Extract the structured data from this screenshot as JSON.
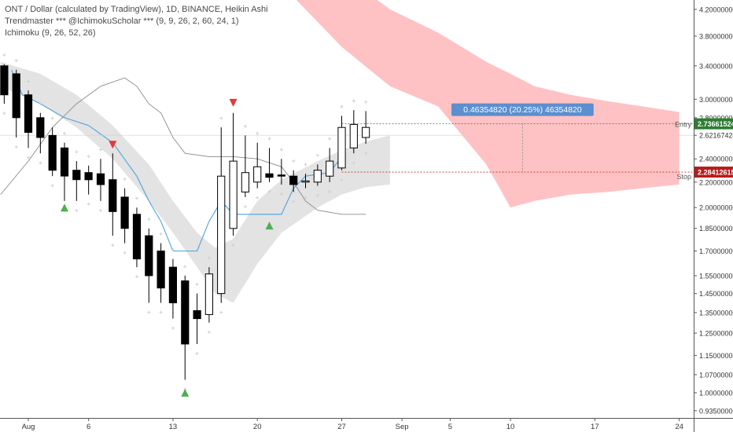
{
  "legend": {
    "line1": "ONT / Dollar (calculated by TradingView), 1D, BINANCE, Heikin Ashi",
    "line2": "Trendmaster *** @IchimokuScholar *** (9, 9, 26, 2, 60, 24, 1)",
    "line3": "Ichimoku (9, 26, 52, 26)"
  },
  "colors": {
    "candle_down": "#000000",
    "candle_up_fill": "#ffffff",
    "cloud_bear": "#ffc2c4",
    "cloud_trendmaster": "#dedede",
    "blue_line": "#4aa3df",
    "entry_label": "#2e7d32",
    "stop_label": "#b71c1c",
    "measure_label": "#5b8fcf",
    "arrow_up": "#4caf50",
    "arrow_down": "#e53935"
  },
  "chart_data": {
    "type": "candlestick",
    "symbol": "ONT / Dollar",
    "interval": "1D",
    "exchange": "BINANCE",
    "style": "Heikin Ashi",
    "y_scale": "log",
    "ylim": [
      0.91,
      4.35
    ],
    "y_ticks": [
      "0.93500000",
      "1.00000000",
      "1.07000000",
      "1.15000000",
      "1.25000000",
      "1.35000000",
      "1.45000000",
      "1.55000000",
      "1.70000000",
      "1.85000000",
      "2.00000000",
      "2.20000000",
      "2.40000000",
      "2.62167424",
      "2.80000000",
      "3.00000000",
      "3.40000000",
      "3.80000000",
      "4.20000000"
    ],
    "x_ticks": [
      {
        "label": "Aug",
        "day": 1
      },
      {
        "label": "6",
        "day": 6
      },
      {
        "label": "13",
        "day": 13
      },
      {
        "label": "20",
        "day": 20
      },
      {
        "label": "27",
        "day": 27
      },
      {
        "label": "Sep",
        "day": 32
      },
      {
        "label": "5",
        "day": 36
      },
      {
        "label": "10",
        "day": 41
      },
      {
        "label": "17",
        "day": 48
      },
      {
        "label": "24",
        "day": 55
      }
    ],
    "x_range_days": [
      -1.35,
      56.2
    ],
    "candles": [
      {
        "day": -1,
        "o": 3.4,
        "h": 3.42,
        "l": 2.95,
        "c": 3.05
      },
      {
        "day": 0,
        "o": 3.3,
        "h": 3.35,
        "l": 2.6,
        "c": 2.8
      },
      {
        "day": 1,
        "o": 3.05,
        "h": 3.1,
        "l": 2.5,
        "c": 2.65
      },
      {
        "day": 2,
        "o": 2.8,
        "h": 2.85,
        "l": 2.45,
        "c": 2.6
      },
      {
        "day": 3,
        "o": 2.62,
        "h": 2.7,
        "l": 2.25,
        "c": 2.3
      },
      {
        "day": 4,
        "o": 2.5,
        "h": 2.55,
        "l": 2.05,
        "c": 2.25
      },
      {
        "day": 5,
        "o": 2.3,
        "h": 2.38,
        "l": 2.05,
        "c": 2.22
      },
      {
        "day": 6,
        "o": 2.28,
        "h": 2.34,
        "l": 2.1,
        "c": 2.22
      },
      {
        "day": 7,
        "o": 2.27,
        "h": 2.4,
        "l": 2.05,
        "c": 2.18
      },
      {
        "day": 8,
        "o": 2.22,
        "h": 2.45,
        "l": 1.8,
        "c": 1.97
      },
      {
        "day": 9,
        "o": 2.08,
        "h": 2.15,
        "l": 1.75,
        "c": 1.85
      },
      {
        "day": 10,
        "o": 1.95,
        "h": 2.0,
        "l": 1.6,
        "c": 1.65
      },
      {
        "day": 11,
        "o": 1.8,
        "h": 1.85,
        "l": 1.4,
        "c": 1.55
      },
      {
        "day": 12,
        "o": 1.7,
        "h": 1.75,
        "l": 1.4,
        "c": 1.48
      },
      {
        "day": 13,
        "o": 1.6,
        "h": 1.65,
        "l": 1.32,
        "c": 1.4
      },
      {
        "day": 14,
        "o": 1.52,
        "h": 1.55,
        "l": 1.05,
        "c": 1.2
      },
      {
        "day": 15,
        "o": 1.36,
        "h": 1.45,
        "l": 1.2,
        "c": 1.32
      },
      {
        "day": 16,
        "o": 1.34,
        "h": 1.6,
        "l": 1.3,
        "c": 1.56
      },
      {
        "day": 17,
        "o": 1.45,
        "h": 2.7,
        "l": 1.4,
        "c": 2.25
      },
      {
        "day": 18,
        "o": 1.85,
        "h": 2.85,
        "l": 1.8,
        "c": 2.38
      },
      {
        "day": 19,
        "o": 2.12,
        "h": 2.62,
        "l": 2.08,
        "c": 2.28
      },
      {
        "day": 20,
        "o": 2.2,
        "h": 2.55,
        "l": 2.15,
        "c": 2.33
      },
      {
        "day": 21,
        "o": 2.27,
        "h": 2.5,
        "l": 2.2,
        "c": 2.24
      },
      {
        "day": 22,
        "o": 2.26,
        "h": 2.4,
        "l": 2.18,
        "c": 2.25
      },
      {
        "day": 23,
        "o": 2.25,
        "h": 2.3,
        "l": 2.12,
        "c": 2.18
      },
      {
        "day": 24,
        "o": 2.21,
        "h": 2.27,
        "l": 2.15,
        "c": 2.21
      },
      {
        "day": 25,
        "o": 2.2,
        "h": 2.35,
        "l": 2.17,
        "c": 2.3
      },
      {
        "day": 26,
        "o": 2.25,
        "h": 2.5,
        "l": 2.2,
        "c": 2.38
      },
      {
        "day": 27,
        "o": 2.32,
        "h": 2.82,
        "l": 2.3,
        "c": 2.7
      },
      {
        "day": 28,
        "o": 2.5,
        "h": 2.88,
        "l": 2.45,
        "c": 2.73
      },
      {
        "day": 29,
        "o": 2.6,
        "h": 2.87,
        "l": 2.54,
        "c": 2.7
      }
    ],
    "kumo_cloud": {
      "x": [
        19,
        23,
        27,
        31,
        35,
        39,
        41,
        43,
        46,
        49,
        52,
        55
      ],
      "upper": [
        6.0,
        5.5,
        4.8,
        4.2,
        3.85,
        3.45,
        3.3,
        3.15,
        3.05,
        2.98,
        2.92,
        2.86
      ],
      "lower": [
        5.0,
        4.4,
        3.65,
        3.15,
        2.92,
        2.35,
        2.0,
        2.05,
        2.1,
        2.12,
        2.15,
        2.18
      ]
    },
    "trendmaster_band": {
      "x": [
        -1.3,
        2,
        5,
        8,
        11,
        13,
        15,
        16.5,
        18,
        20,
        22,
        25,
        27,
        29,
        31
      ],
      "upper": [
        3.45,
        3.3,
        3.05,
        2.72,
        2.35,
        2.05,
        1.82,
        1.72,
        1.78,
        2.05,
        2.22,
        2.38,
        2.48,
        2.56,
        2.62
      ],
      "lower": [
        3.15,
        2.95,
        2.7,
        2.4,
        2.05,
        1.82,
        1.6,
        1.45,
        1.4,
        1.62,
        1.82,
        2.0,
        2.1,
        2.16,
        2.18
      ]
    },
    "gray_line": {
      "x": [
        -1.3,
        1,
        3,
        5,
        7,
        9,
        10,
        11,
        12,
        13,
        14,
        16,
        18,
        20,
        22,
        23,
        24,
        25,
        27,
        29
      ],
      "y": [
        2.1,
        2.38,
        2.7,
        2.95,
        3.15,
        3.25,
        3.15,
        2.95,
        2.85,
        2.6,
        2.45,
        2.42,
        2.42,
        2.4,
        2.33,
        2.2,
        2.05,
        1.98,
        1.95,
        1.95
      ]
    },
    "blue_line": {
      "x": [
        -0.4,
        0.5,
        2,
        4,
        6,
        8,
        10,
        11,
        12,
        13,
        14,
        15,
        16,
        17,
        18,
        19,
        22,
        23,
        24,
        26,
        27
      ],
      "y": [
        3.35,
        3.05,
        2.95,
        2.8,
        2.72,
        2.55,
        2.25,
        2.05,
        1.9,
        1.7,
        1.7,
        1.7,
        1.9,
        2.05,
        1.95,
        1.95,
        1.95,
        2.15,
        2.25,
        2.28,
        2.42
      ]
    },
    "markers": [
      {
        "type": "down",
        "day": 8,
        "price": 2.53
      },
      {
        "type": "up",
        "day": 4,
        "price": 2.0
      },
      {
        "type": "down",
        "day": 18,
        "price": 2.96
      },
      {
        "type": "up",
        "day": 21,
        "price": 1.87
      },
      {
        "type": "up",
        "day": 14,
        "price": 1.0
      }
    ],
    "entry_line": {
      "label": "Entry",
      "price": 2.73661524,
      "price_label": "2.73661524",
      "x_start_day": 27
    },
    "stop_line": {
      "label": "Stop",
      "price": 2.28412615,
      "price_label": "2.28412615",
      "x_start_day": 27
    },
    "measurement": {
      "label": "0.46354820 (20.25%) 46354820",
      "day": 42
    }
  }
}
